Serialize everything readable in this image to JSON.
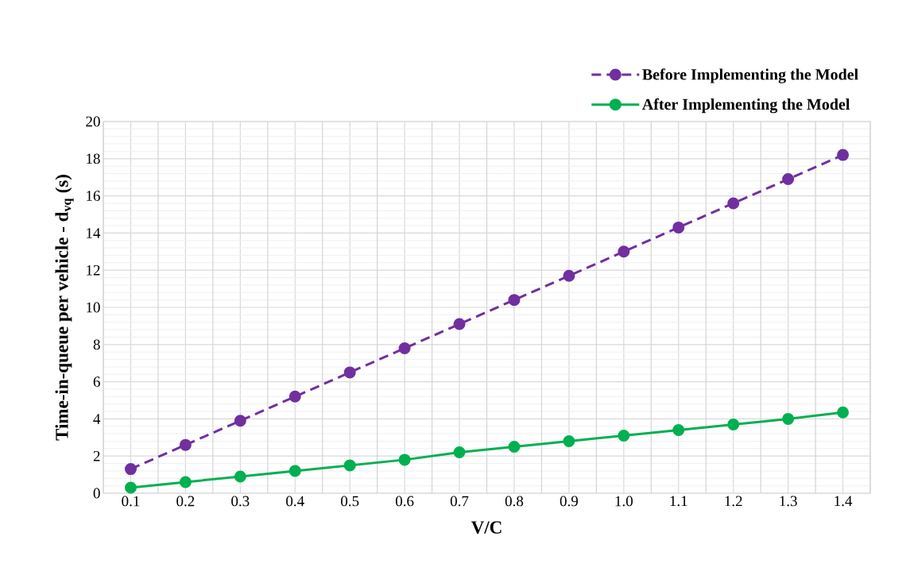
{
  "chart_data": {
    "type": "line",
    "xlabel": "V/C",
    "ylabel": "Time-in-queue per vehicle - d$_{vq}$ (s)",
    "categories": [
      "0.1",
      "0.2",
      "0.3",
      "0.4",
      "0.5",
      "0.6",
      "0.7",
      "0.8",
      "0.9",
      "1.0",
      "1.1",
      "1.2",
      "1.3",
      "1.4"
    ],
    "series": [
      {
        "name": "Before Implementing the Model",
        "color": "#7030a0",
        "line_style": "dashed",
        "values": [
          1.3,
          2.6,
          3.9,
          5.2,
          6.5,
          7.8,
          9.1,
          10.4,
          11.7,
          13.0,
          14.3,
          15.6,
          16.9,
          18.2
        ]
      },
      {
        "name": "After Implementing the Model",
        "color": "#00b050",
        "line_style": "solid",
        "values": [
          0.3,
          0.6,
          0.9,
          1.2,
          1.5,
          1.8,
          2.2,
          2.5,
          2.8,
          3.1,
          3.4,
          3.7,
          4.0,
          4.35
        ]
      }
    ],
    "ylim": [
      0,
      20
    ],
    "yticks": [
      0,
      2,
      4,
      6,
      8,
      10,
      12,
      14,
      16,
      18,
      20
    ],
    "grid": true,
    "legend": "top right",
    "marker": "circle"
  }
}
